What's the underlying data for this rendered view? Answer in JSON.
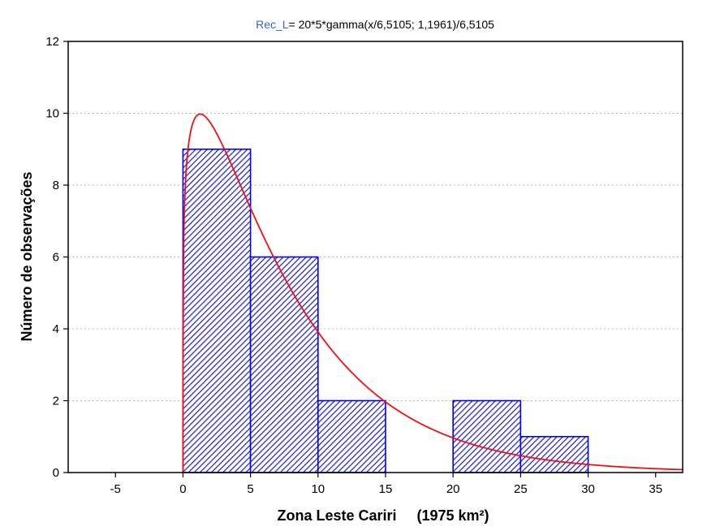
{
  "chart_data": {
    "type": "bar",
    "subtype": "histogram",
    "title_prefix": "Rec_L",
    "title_rest": "= 20*5*gamma(x/6,5105; 1,1961)/6,5105",
    "xlabel": "Zona Leste Cariri     (1975 km²)",
    "ylabel": "Número de observações",
    "xlim": [
      -8.5,
      37
    ],
    "ylim": [
      0,
      12
    ],
    "x_ticks": [
      -5,
      0,
      5,
      10,
      15,
      20,
      25,
      30,
      35
    ],
    "x_tick_labels": [
      "-5",
      "0",
      "5",
      "10",
      "15",
      "20",
      "25",
      "30",
      "35"
    ],
    "y_ticks": [
      0,
      2,
      4,
      6,
      8,
      10,
      12
    ],
    "y_tick_labels": [
      "0",
      "2",
      "4",
      "6",
      "8",
      "10",
      "12"
    ],
    "grid": true,
    "bins": [
      {
        "x0": 0,
        "x1": 5,
        "count": 9
      },
      {
        "x0": 5,
        "x1": 10,
        "count": 6
      },
      {
        "x0": 10,
        "x1": 15,
        "count": 2
      },
      {
        "x0": 15,
        "x1": 20,
        "count": 0
      },
      {
        "x0": 20,
        "x1": 25,
        "count": 2
      },
      {
        "x0": 25,
        "x1": 30,
        "count": 1
      }
    ],
    "fitted_curve": {
      "distribution": "gamma",
      "scale": 6.5105,
      "shape": 1.1961,
      "multiplier": 100
    },
    "colors": {
      "bar_edge": "#0000ee",
      "bar_hatch": "#1a1ad0",
      "curve": "#ee1111",
      "grid": "#b8b8b8",
      "title_prefix": "#2e6bc4",
      "title_rest": "#000000"
    }
  }
}
